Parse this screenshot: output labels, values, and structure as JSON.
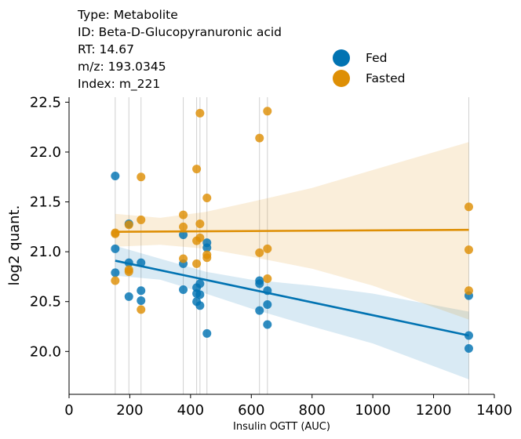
{
  "info": {
    "type": "Type: Metabolite",
    "id": "ID: Beta-D-Glucopyranuronic acid",
    "rt": "RT: 14.67",
    "mz": "m/z: 193.0345",
    "index": "Index: m_221"
  },
  "chart_data": {
    "type": "scatter",
    "xlabel": "Insulin OGTT (AUC)",
    "ylabel": "log2 quant.",
    "xlim": [
      0,
      1400
    ],
    "ylim": [
      19.57,
      22.55
    ],
    "x_ticks": [
      0,
      200,
      400,
      600,
      800,
      1000,
      1200,
      1400
    ],
    "y_ticks": [
      20.0,
      20.5,
      21.0,
      21.5,
      22.0,
      22.5
    ],
    "x_tick_labels": [
      "0",
      "200",
      "400",
      "600",
      "800",
      "1000",
      "1200",
      "1400"
    ],
    "y_tick_labels": [
      "20.0",
      "20.5",
      "21.0",
      "21.5",
      "22.0",
      "22.5"
    ],
    "grid": "vertical lines at sample x values",
    "legend_position": "top-right",
    "vlines": [
      152,
      197,
      237,
      376,
      420,
      431,
      454,
      627,
      653,
      1316
    ],
    "series": [
      {
        "name": "Fed",
        "color": "#0173b2",
        "points": [
          [
            152,
            21.76
          ],
          [
            152,
            21.03
          ],
          [
            152,
            20.79
          ],
          [
            197,
            21.28
          ],
          [
            197,
            20.89
          ],
          [
            197,
            20.55
          ],
          [
            237,
            20.89
          ],
          [
            237,
            20.61
          ],
          [
            237,
            20.51
          ],
          [
            376,
            21.17
          ],
          [
            376,
            20.88
          ],
          [
            376,
            20.62
          ],
          [
            420,
            20.64
          ],
          [
            420,
            20.58
          ],
          [
            420,
            20.5
          ],
          [
            431,
            20.68
          ],
          [
            431,
            20.57
          ],
          [
            431,
            20.46
          ],
          [
            454,
            21.09
          ],
          [
            454,
            21.04
          ],
          [
            454,
            20.18
          ],
          [
            627,
            20.71
          ],
          [
            627,
            20.68
          ],
          [
            627,
            20.41
          ],
          [
            653,
            20.61
          ],
          [
            653,
            20.47
          ],
          [
            653,
            20.27
          ],
          [
            1316,
            20.56
          ],
          [
            1316,
            20.16
          ],
          [
            1316,
            20.03
          ]
        ],
        "fit": {
          "x": [
            152,
            1316
          ],
          "y": [
            20.91,
            20.16
          ]
        },
        "ci_upper": [
          [
            152,
            21.06
          ],
          [
            300,
            20.93
          ],
          [
            450,
            20.8
          ],
          [
            600,
            20.72
          ],
          [
            800,
            20.66
          ],
          [
            1000,
            20.58
          ],
          [
            1316,
            20.4
          ]
        ],
        "ci_lower": [
          [
            152,
            20.76
          ],
          [
            300,
            20.72
          ],
          [
            450,
            20.58
          ],
          [
            600,
            20.43
          ],
          [
            800,
            20.25
          ],
          [
            1000,
            20.08
          ],
          [
            1316,
            19.72
          ]
        ]
      },
      {
        "name": "Fasted",
        "color": "#de8f05",
        "points": [
          [
            152,
            21.19
          ],
          [
            152,
            21.18
          ],
          [
            152,
            20.71
          ],
          [
            197,
            21.27
          ],
          [
            197,
            20.82
          ],
          [
            197,
            20.8
          ],
          [
            237,
            21.75
          ],
          [
            237,
            21.32
          ],
          [
            237,
            20.42
          ],
          [
            376,
            21.37
          ],
          [
            376,
            21.25
          ],
          [
            376,
            20.93
          ],
          [
            420,
            21.83
          ],
          [
            420,
            21.11
          ],
          [
            420,
            20.88
          ],
          [
            431,
            22.39
          ],
          [
            431,
            21.28
          ],
          [
            431,
            21.14
          ],
          [
            454,
            21.54
          ],
          [
            454,
            20.97
          ],
          [
            454,
            20.94
          ],
          [
            627,
            22.14
          ],
          [
            627,
            20.99
          ],
          [
            653,
            22.41
          ],
          [
            653,
            21.03
          ],
          [
            653,
            20.73
          ],
          [
            1316,
            21.45
          ],
          [
            1316,
            21.02
          ],
          [
            1316,
            20.61
          ]
        ],
        "fit": {
          "x": [
            152,
            1316
          ],
          "y": [
            21.2,
            21.22
          ]
        },
        "ci_upper": [
          [
            152,
            21.38
          ],
          [
            300,
            21.34
          ],
          [
            450,
            21.4
          ],
          [
            600,
            21.5
          ],
          [
            800,
            21.64
          ],
          [
            1000,
            21.82
          ],
          [
            1316,
            22.1
          ]
        ],
        "ci_lower": [
          [
            152,
            21.05
          ],
          [
            300,
            21.07
          ],
          [
            450,
            21.03
          ],
          [
            600,
            20.95
          ],
          [
            800,
            20.83
          ],
          [
            1000,
            20.66
          ],
          [
            1316,
            20.32
          ]
        ]
      }
    ]
  }
}
